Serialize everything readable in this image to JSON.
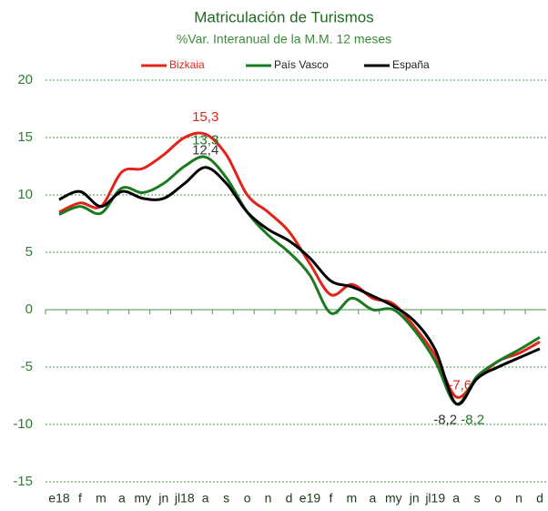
{
  "chart_data": {
    "type": "line",
    "title": "Matriculación de Turismos",
    "subtitle": "%Var. Interanual de la M.M. 12 meses",
    "categories": [
      "e18",
      "f",
      "m",
      "a",
      "my",
      "jn",
      "jl18",
      "a",
      "s",
      "o",
      "n",
      "d",
      "e19",
      "f",
      "m",
      "a",
      "my",
      "jn",
      "jl19",
      "a",
      "s",
      "o",
      "n",
      "d"
    ],
    "series": [
      {
        "name": "Bizkaia",
        "color": "#e2231a",
        "values": [
          8.5,
          9.3,
          9.0,
          12.0,
          12.3,
          13.5,
          15.0,
          15.3,
          13.5,
          10.0,
          8.5,
          6.8,
          4.0,
          1.3,
          2.2,
          1.0,
          0.5,
          -1.5,
          -4.0,
          -7.6,
          -6.0,
          -4.5,
          -3.8,
          -2.8
        ],
        "value_labels": [
          null,
          null,
          null,
          null,
          null,
          null,
          null,
          "15,3",
          null,
          null,
          null,
          null,
          null,
          null,
          null,
          null,
          null,
          null,
          null,
          "-7,6",
          null,
          null,
          null,
          null
        ]
      },
      {
        "name": "País Vasco",
        "color": "#1b7a1f",
        "values": [
          8.3,
          9.0,
          8.4,
          10.6,
          10.2,
          11.0,
          12.5,
          13.3,
          11.5,
          8.5,
          6.5,
          5.0,
          3.0,
          -0.3,
          1.0,
          0.0,
          0.0,
          -1.8,
          -4.5,
          -8.2,
          -5.8,
          -4.5,
          -3.5,
          -2.4
        ],
        "value_labels": [
          null,
          null,
          null,
          null,
          null,
          null,
          null,
          "13,3",
          null,
          null,
          null,
          null,
          null,
          null,
          null,
          null,
          null,
          null,
          null,
          "-8,2",
          null,
          null,
          null,
          null
        ]
      },
      {
        "name": "España",
        "color": "#000000",
        "values": [
          9.6,
          10.3,
          9.0,
          10.3,
          9.7,
          9.7,
          11.0,
          12.4,
          11.0,
          8.5,
          7.0,
          6.0,
          4.5,
          2.5,
          2.0,
          1.2,
          0.3,
          -1.0,
          -3.5,
          -8.2,
          -6.0,
          -5.0,
          -4.2,
          -3.4
        ],
        "value_labels": [
          null,
          null,
          null,
          null,
          null,
          null,
          null,
          "12,4",
          null,
          null,
          null,
          null,
          null,
          null,
          null,
          null,
          null,
          null,
          null,
          "-8,2",
          null,
          null,
          null,
          null
        ]
      }
    ],
    "ylim": [
      -15,
      20
    ],
    "yticks": [
      -15,
      -10,
      -5,
      0,
      5,
      10,
      15,
      20
    ],
    "grid": true,
    "legend": "top"
  }
}
